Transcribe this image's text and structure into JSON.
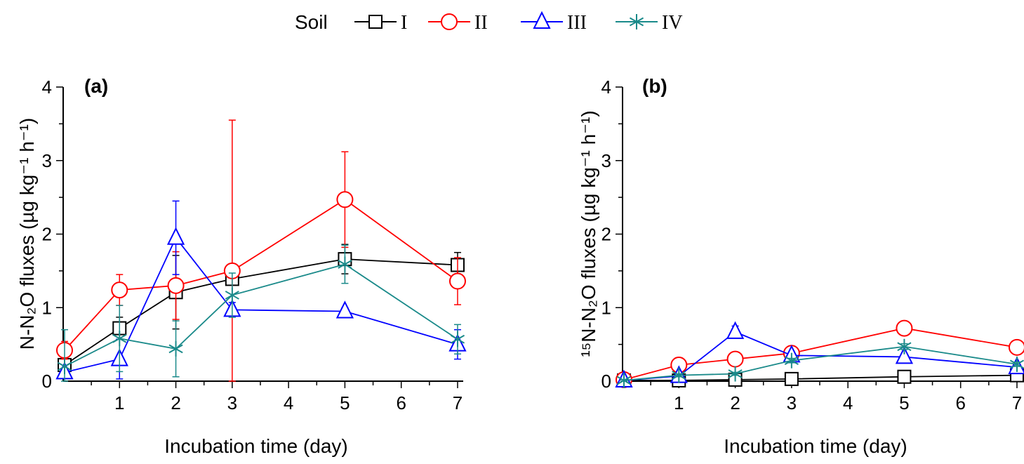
{
  "legend": {
    "title": "Soil",
    "placement": "top-center",
    "items": [
      {
        "name": "I",
        "color": "#000000",
        "marker": "square"
      },
      {
        "name": "II",
        "color": "#ff0000",
        "marker": "circle"
      },
      {
        "name": "III",
        "color": "#0000ff",
        "marker": "triangle"
      },
      {
        "name": "IV",
        "color": "#1a8a8a",
        "marker": "asterisk"
      }
    ]
  },
  "chart_data": [
    {
      "type": "line",
      "title": "(a)",
      "xlabel": "Incubation time (day)",
      "ylabel": "N-N₂O fluxes (µg kg⁻¹ h⁻¹)",
      "xlim": [
        0,
        7.1
      ],
      "ylim": [
        0,
        4
      ],
      "xticks": [
        1,
        2,
        3,
        4,
        5,
        6,
        7
      ],
      "yticks": [
        0,
        1,
        2,
        3,
        4
      ],
      "grid": false,
      "x": [
        0,
        1,
        2,
        3,
        5,
        7
      ],
      "series": [
        {
          "name": "I",
          "values": [
            0.22,
            0.72,
            1.21,
            1.39,
            1.66,
            1.58
          ],
          "errors": [
            0.03,
            0.15,
            0.5,
            0.05,
            0.2,
            0.17
          ]
        },
        {
          "name": "II",
          "values": [
            0.42,
            1.24,
            1.3,
            1.5,
            2.47,
            1.36
          ],
          "errors": [
            0.12,
            0.21,
            0.46,
            2.05,
            0.65,
            0.32
          ]
        },
        {
          "name": "III",
          "values": [
            0.12,
            0.3,
            1.95,
            0.97,
            0.95,
            0.5
          ],
          "errors": [
            0.03,
            0.27,
            0.5,
            0.1,
            0.05,
            0.2
          ]
        },
        {
          "name": "IV",
          "values": [
            0.2,
            0.58,
            0.44,
            1.17,
            1.59,
            0.57
          ],
          "errors": [
            0.5,
            0.45,
            0.38,
            0.3,
            0.26,
            0.2
          ]
        }
      ]
    },
    {
      "type": "line",
      "title": "(b)",
      "xlabel": "Incubation time (day)",
      "ylabel": "¹⁵N-N₂O fluxes (µg kg⁻¹ h⁻¹)",
      "xlim": [
        0,
        7.1
      ],
      "ylim": [
        0,
        4
      ],
      "xticks": [
        1,
        2,
        3,
        4,
        5,
        6,
        7
      ],
      "yticks": [
        0,
        1,
        2,
        3,
        4
      ],
      "grid": false,
      "x": [
        0,
        1,
        2,
        3,
        5,
        7
      ],
      "series": [
        {
          "name": "I",
          "values": [
            0.01,
            0.01,
            0.02,
            0.03,
            0.06,
            0.08
          ],
          "errors": [
            0.01,
            0.01,
            0.01,
            0.01,
            0.02,
            0.03
          ]
        },
        {
          "name": "II",
          "values": [
            0.02,
            0.22,
            0.3,
            0.38,
            0.72,
            0.46
          ],
          "errors": [
            0.01,
            0.05,
            0.05,
            0.04,
            0.05,
            0.05
          ]
        },
        {
          "name": "III",
          "values": [
            0.01,
            0.07,
            0.67,
            0.35,
            0.33,
            0.19
          ],
          "errors": [
            0.01,
            0.02,
            0.08,
            0.04,
            0.04,
            0.03
          ]
        },
        {
          "name": "IV",
          "values": [
            0.01,
            0.08,
            0.1,
            0.28,
            0.47,
            0.23
          ],
          "errors": [
            0.01,
            0.02,
            0.02,
            0.03,
            0.04,
            0.03
          ]
        }
      ]
    }
  ]
}
